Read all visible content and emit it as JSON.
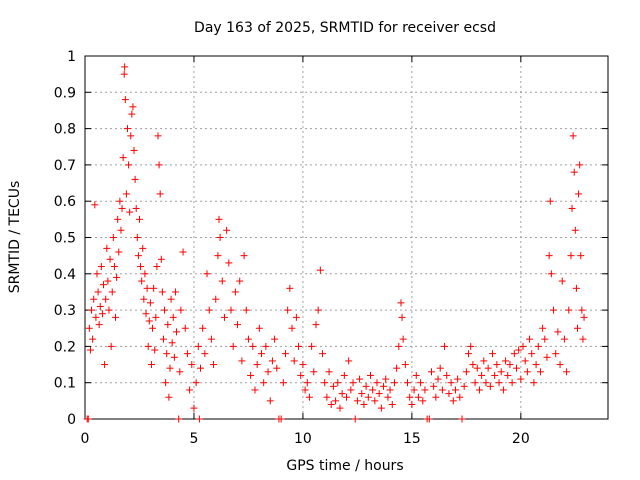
{
  "chart_data": {
    "type": "scatter",
    "title": "Day 163 of 2025, SRMTID for receiver ecsd",
    "xlabel": "GPS time / hours",
    "ylabel": "SRMTID / TECUs",
    "xlim": [
      0,
      24
    ],
    "ylim": [
      0,
      1
    ],
    "xticks": [
      0,
      5,
      10,
      15,
      20
    ],
    "xtick_labels": [
      "0",
      "5",
      "10",
      "15",
      "20"
    ],
    "yticks": [
      0,
      0.1,
      0.2,
      0.3,
      0.4,
      0.5,
      0.6,
      0.7,
      0.8,
      0.9,
      1
    ],
    "ytick_labels": [
      "0",
      "0.1",
      "0.2",
      "0.3",
      "0.4",
      "0.5",
      "0.6",
      "0.7",
      "0.8",
      "0.9",
      "1"
    ],
    "grid": true,
    "marker": "+",
    "color": "#ff0000",
    "series": [
      {
        "name": "SRMTID",
        "points": [
          [
            0.1,
            0
          ],
          [
            0.15,
            0
          ],
          [
            0.2,
            0.25
          ],
          [
            0.25,
            0.19
          ],
          [
            0.3,
            0.3
          ],
          [
            0.35,
            0.22
          ],
          [
            0.4,
            0.33
          ],
          [
            0.45,
            0.59
          ],
          [
            0.5,
            0.28
          ],
          [
            0.55,
            0.4
          ],
          [
            0.6,
            0.35
          ],
          [
            0.65,
            0.26
          ],
          [
            0.7,
            0.31
          ],
          [
            0.75,
            0.42
          ],
          [
            0.8,
            0.29
          ],
          [
            0.85,
            0.37
          ],
          [
            0.9,
            0.15
          ],
          [
            0.95,
            0.33
          ],
          [
            1.0,
            0.47
          ],
          [
            1.05,
            0.38
          ],
          [
            1.1,
            0.3
          ],
          [
            1.15,
            0.44
          ],
          [
            1.2,
            0.2
          ],
          [
            1.25,
            0.35
          ],
          [
            1.3,
            0.5
          ],
          [
            1.35,
            0.42
          ],
          [
            1.4,
            0.28
          ],
          [
            1.45,
            0.39
          ],
          [
            1.5,
            0.55
          ],
          [
            1.55,
            0.46
          ],
          [
            1.6,
            0.6
          ],
          [
            1.65,
            0.52
          ],
          [
            1.7,
            0.58
          ],
          [
            1.75,
            0.72
          ],
          [
            1.8,
            0.95
          ],
          [
            1.82,
            0.97
          ],
          [
            1.85,
            0.88
          ],
          [
            1.9,
            0.62
          ],
          [
            1.95,
            0.8
          ],
          [
            2.0,
            0.7
          ],
          [
            2.05,
            0.57
          ],
          [
            2.1,
            0.78
          ],
          [
            2.15,
            0.84
          ],
          [
            2.2,
            0.86
          ],
          [
            2.25,
            0.74
          ],
          [
            2.3,
            0.66
          ],
          [
            2.35,
            0.58
          ],
          [
            2.4,
            0.5
          ],
          [
            2.45,
            0.45
          ],
          [
            2.5,
            0.55
          ],
          [
            2.55,
            0.42
          ],
          [
            2.6,
            0.38
          ],
          [
            2.65,
            0.47
          ],
          [
            2.7,
            0.33
          ],
          [
            2.75,
            0.4
          ],
          [
            2.8,
            0.29
          ],
          [
            2.85,
            0.36
          ],
          [
            2.9,
            0.2
          ],
          [
            2.95,
            0.27
          ],
          [
            3.0,
            0.32
          ],
          [
            3.05,
            0.15
          ],
          [
            3.1,
            0.25
          ],
          [
            3.15,
            0.36
          ],
          [
            3.2,
            0.19
          ],
          [
            3.25,
            0.28
          ],
          [
            3.3,
            0.42
          ],
          [
            3.35,
            0.78
          ],
          [
            3.4,
            0.7
          ],
          [
            3.45,
            0.62
          ],
          [
            3.5,
            0.44
          ],
          [
            3.55,
            0.35
          ],
          [
            3.6,
            0.22
          ],
          [
            3.65,
            0.3
          ],
          [
            3.7,
            0.1
          ],
          [
            3.75,
            0.18
          ],
          [
            3.8,
            0.26
          ],
          [
            3.85,
            0.06
          ],
          [
            3.9,
            0.14
          ],
          [
            3.95,
            0.33
          ],
          [
            4.0,
            0.21
          ],
          [
            4.05,
            0.28
          ],
          [
            4.1,
            0.17
          ],
          [
            4.15,
            0.35
          ],
          [
            4.2,
            0.24
          ],
          [
            4.3,
            0
          ],
          [
            4.35,
            0.13
          ],
          [
            4.4,
            0.3
          ],
          [
            4.5,
            0.46
          ],
          [
            4.6,
            0.25
          ],
          [
            4.7,
            0.18
          ],
          [
            4.8,
            0.08
          ],
          [
            4.9,
            0.15
          ],
          [
            5.0,
            0.03
          ],
          [
            5.1,
            0.1
          ],
          [
            5.2,
            0.2
          ],
          [
            5.25,
            0
          ],
          [
            5.3,
            0.14
          ],
          [
            5.4,
            0.25
          ],
          [
            5.5,
            0.18
          ],
          [
            5.6,
            0.4
          ],
          [
            5.7,
            0.3
          ],
          [
            5.8,
            0.22
          ],
          [
            5.9,
            0.15
          ],
          [
            6.0,
            0.33
          ],
          [
            6.1,
            0.45
          ],
          [
            6.15,
            0.55
          ],
          [
            6.2,
            0.5
          ],
          [
            6.3,
            0.38
          ],
          [
            6.4,
            0.28
          ],
          [
            6.5,
            0.52
          ],
          [
            6.6,
            0.43
          ],
          [
            6.7,
            0.3
          ],
          [
            6.8,
            0.2
          ],
          [
            6.9,
            0.35
          ],
          [
            7.0,
            0.26
          ],
          [
            7.1,
            0.38
          ],
          [
            7.2,
            0.16
          ],
          [
            7.3,
            0.45
          ],
          [
            7.4,
            0.3
          ],
          [
            7.5,
            0.22
          ],
          [
            7.6,
            0.12
          ],
          [
            7.7,
            0.2
          ],
          [
            7.8,
            0.08
          ],
          [
            7.9,
            0.15
          ],
          [
            8.0,
            0.25
          ],
          [
            8.1,
            0.18
          ],
          [
            8.2,
            0.1
          ],
          [
            8.3,
            0.2
          ],
          [
            8.4,
            0.13
          ],
          [
            8.5,
            0.05
          ],
          [
            8.6,
            0.16
          ],
          [
            8.7,
            0.22
          ],
          [
            8.8,
            0.14
          ],
          [
            8.9,
            0
          ],
          [
            9.0,
            0
          ],
          [
            9.1,
            0.1
          ],
          [
            9.2,
            0.18
          ],
          [
            9.3,
            0.3
          ],
          [
            9.4,
            0.36
          ],
          [
            9.5,
            0.25
          ],
          [
            9.6,
            0.16
          ],
          [
            9.7,
            0.28
          ],
          [
            9.8,
            0.2
          ],
          [
            9.9,
            0.12
          ],
          [
            10.0,
            0.15
          ],
          [
            10.1,
            0.08
          ],
          [
            10.2,
            0.1
          ],
          [
            10.3,
            0.06
          ],
          [
            10.4,
            0.2
          ],
          [
            10.5,
            0.13
          ],
          [
            10.6,
            0.26
          ],
          [
            10.7,
            0.3
          ],
          [
            10.8,
            0.41
          ],
          [
            10.9,
            0.18
          ],
          [
            11.0,
            0.1
          ],
          [
            11.1,
            0.06
          ],
          [
            11.2,
            0.13
          ],
          [
            11.3,
            0.04
          ],
          [
            11.4,
            0.09
          ],
          [
            11.5,
            0.05
          ],
          [
            11.6,
            0.1
          ],
          [
            11.7,
            0.03
          ],
          [
            11.8,
            0.07
          ],
          [
            11.9,
            0.12
          ],
          [
            12.0,
            0.06
          ],
          [
            12.1,
            0.16
          ],
          [
            12.2,
            0.08
          ],
          [
            12.3,
            0.1
          ],
          [
            12.4,
            0
          ],
          [
            12.5,
            0.05
          ],
          [
            12.6,
            0.11
          ],
          [
            12.7,
            0.07
          ],
          [
            12.8,
            0.04
          ],
          [
            12.9,
            0.09
          ],
          [
            13.0,
            0.06
          ],
          [
            13.1,
            0.12
          ],
          [
            13.2,
            0.08
          ],
          [
            13.3,
            0.05
          ],
          [
            13.4,
            0.1
          ],
          [
            13.5,
            0.07
          ],
          [
            13.6,
            0.03
          ],
          [
            13.7,
            0.09
          ],
          [
            13.8,
            0.11
          ],
          [
            13.9,
            0.06
          ],
          [
            14.0,
            0.08
          ],
          [
            14.1,
            0.04
          ],
          [
            14.2,
            0.1
          ],
          [
            14.3,
            0.14
          ],
          [
            14.4,
            0.2
          ],
          [
            14.5,
            0.32
          ],
          [
            14.55,
            0.28
          ],
          [
            14.6,
            0.22
          ],
          [
            14.7,
            0.15
          ],
          [
            14.8,
            0.1
          ],
          [
            14.9,
            0.06
          ],
          [
            15.0,
            0.04
          ],
          [
            15.1,
            0.08
          ],
          [
            15.2,
            0.12
          ],
          [
            15.3,
            0.06
          ],
          [
            15.4,
            0.1
          ],
          [
            15.5,
            0.05
          ],
          [
            15.6,
            0.08
          ],
          [
            15.7,
            0
          ],
          [
            15.8,
            0
          ],
          [
            15.9,
            0.13
          ],
          [
            16.0,
            0.09
          ],
          [
            16.1,
            0.06
          ],
          [
            16.2,
            0.11
          ],
          [
            16.3,
            0.14
          ],
          [
            16.4,
            0.08
          ],
          [
            16.5,
            0.2
          ],
          [
            16.6,
            0.12
          ],
          [
            16.7,
            0.07
          ],
          [
            16.8,
            0.1
          ],
          [
            16.9,
            0.05
          ],
          [
            17.0,
            0.08
          ],
          [
            17.1,
            0.11
          ],
          [
            17.2,
            0.06
          ],
          [
            17.3,
            0
          ],
          [
            17.4,
            0.09
          ],
          [
            17.5,
            0.13
          ],
          [
            17.6,
            0.18
          ],
          [
            17.7,
            0.2
          ],
          [
            17.8,
            0.15
          ],
          [
            17.9,
            0.1
          ],
          [
            18.0,
            0.14
          ],
          [
            18.1,
            0.08
          ],
          [
            18.2,
            0.12
          ],
          [
            18.3,
            0.16
          ],
          [
            18.4,
            0.1
          ],
          [
            18.5,
            0.14
          ],
          [
            18.6,
            0.09
          ],
          [
            18.7,
            0.18
          ],
          [
            18.8,
            0.12
          ],
          [
            18.9,
            0.15
          ],
          [
            19.0,
            0.1
          ],
          [
            19.1,
            0.13
          ],
          [
            19.2,
            0.08
          ],
          [
            19.3,
            0.16
          ],
          [
            19.4,
            0.12
          ],
          [
            19.5,
            0.15
          ],
          [
            19.6,
            0.1
          ],
          [
            19.7,
            0.18
          ],
          [
            19.8,
            0.14
          ],
          [
            19.9,
            0.19
          ],
          [
            20.0,
            0.11
          ],
          [
            20.1,
            0.2
          ],
          [
            20.2,
            0.16
          ],
          [
            20.3,
            0.13
          ],
          [
            20.4,
            0.22
          ],
          [
            20.5,
            0.18
          ],
          [
            20.6,
            0.1
          ],
          [
            20.7,
            0.15
          ],
          [
            20.8,
            0.2
          ],
          [
            20.9,
            0.13
          ],
          [
            21.0,
            0.25
          ],
          [
            21.1,
            0.22
          ],
          [
            21.2,
            0.17
          ],
          [
            21.3,
            0.45
          ],
          [
            21.35,
            0.6
          ],
          [
            21.4,
            0.4
          ],
          [
            21.5,
            0.3
          ],
          [
            21.6,
            0.18
          ],
          [
            21.7,
            0.24
          ],
          [
            21.8,
            0.15
          ],
          [
            21.9,
            0.38
          ],
          [
            22.0,
            0.22
          ],
          [
            22.1,
            0.13
          ],
          [
            22.2,
            0.3
          ],
          [
            22.3,
            0.45
          ],
          [
            22.35,
            0.58
          ],
          [
            22.4,
            0.78
          ],
          [
            22.45,
            0.68
          ],
          [
            22.5,
            0.52
          ],
          [
            22.55,
            0.36
          ],
          [
            22.6,
            0.25
          ],
          [
            22.65,
            0.62
          ],
          [
            22.7,
            0.7
          ],
          [
            22.75,
            0.45
          ],
          [
            22.8,
            0.3
          ],
          [
            22.85,
            0.22
          ],
          [
            22.9,
            0.28
          ]
        ]
      }
    ]
  }
}
